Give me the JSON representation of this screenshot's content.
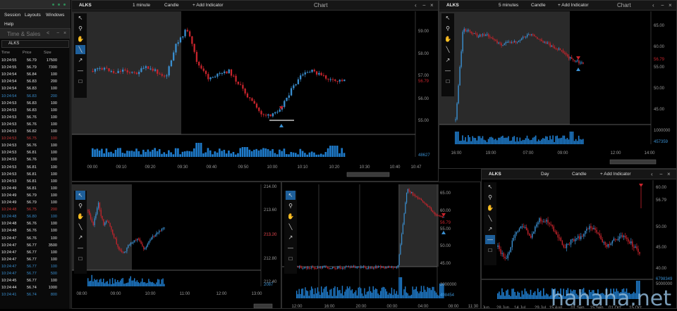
{
  "menu": {
    "items": [
      "Session",
      "Layouts",
      "Windows",
      "Help"
    ]
  },
  "time_sales": {
    "title": "Time & Sales",
    "symbol": "ALKS",
    "columns": [
      "Time",
      "Price",
      "Size"
    ],
    "rows": [
      {
        "time": "10:24:55",
        "price": "56.79",
        "size": "17500",
        "color": "#e6e6e6"
      },
      {
        "time": "10:24:55",
        "price": "56.79",
        "size": "7300",
        "color": "#e6e6e6"
      },
      {
        "time": "10:24:54",
        "price": "56.84",
        "size": "100",
        "color": "#e6e6e6"
      },
      {
        "time": "10:24:54",
        "price": "56.83",
        "size": "200",
        "color": "#e6e6e6"
      },
      {
        "time": "10:24:54",
        "price": "56.83",
        "size": "100",
        "color": "#e6e6e6"
      },
      {
        "time": "10:24:54",
        "price": "56.83",
        "size": "200",
        "color": "#3a8fd0"
      },
      {
        "time": "10:24:53",
        "price": "56.83",
        "size": "100",
        "color": "#e6e6e6"
      },
      {
        "time": "10:24:53",
        "price": "56.83",
        "size": "100",
        "color": "#e6e6e6"
      },
      {
        "time": "10:24:53",
        "price": "56.76",
        "size": "100",
        "color": "#e6e6e6"
      },
      {
        "time": "10:24:53",
        "price": "56.76",
        "size": "100",
        "color": "#e6e6e6"
      },
      {
        "time": "10:24:53",
        "price": "56.82",
        "size": "100",
        "color": "#e6e6e6"
      },
      {
        "time": "10:24:53",
        "price": "56.75",
        "size": "100",
        "color": "#d03a3a"
      },
      {
        "time": "10:24:53",
        "price": "56.76",
        "size": "100",
        "color": "#e6e6e6"
      },
      {
        "time": "10:24:53",
        "price": "56.81",
        "size": "100",
        "color": "#e6e6e6"
      },
      {
        "time": "10:24:53",
        "price": "56.76",
        "size": "100",
        "color": "#e6e6e6"
      },
      {
        "time": "10:24:53",
        "price": "56.81",
        "size": "100",
        "color": "#e6e6e6"
      },
      {
        "time": "10:24:53",
        "price": "56.81",
        "size": "100",
        "color": "#e6e6e6"
      },
      {
        "time": "10:24:53",
        "price": "56.81",
        "size": "100",
        "color": "#e6e6e6"
      },
      {
        "time": "10:24:49",
        "price": "56.81",
        "size": "100",
        "color": "#e6e6e6"
      },
      {
        "time": "10:24:49",
        "price": "56.79",
        "size": "100",
        "color": "#e6e6e6"
      },
      {
        "time": "10:24:49",
        "price": "56.79",
        "size": "100",
        "color": "#e6e6e6"
      },
      {
        "time": "10:24:48",
        "price": "56.75",
        "size": "200",
        "color": "#d03a3a"
      },
      {
        "time": "10:24:48",
        "price": "56.80",
        "size": "100",
        "color": "#3a8fd0"
      },
      {
        "time": "10:24:48",
        "price": "56.76",
        "size": "100",
        "color": "#e6e6e6"
      },
      {
        "time": "10:24:48",
        "price": "56.76",
        "size": "100",
        "color": "#e6e6e6"
      },
      {
        "time": "10:24:47",
        "price": "56.76",
        "size": "100",
        "color": "#e6e6e6"
      },
      {
        "time": "10:24:47",
        "price": "56.77",
        "size": "3500",
        "color": "#e6e6e6"
      },
      {
        "time": "10:24:47",
        "price": "56.77",
        "size": "100",
        "color": "#e6e6e6"
      },
      {
        "time": "10:24:47",
        "price": "56.77",
        "size": "100",
        "color": "#e6e6e6"
      },
      {
        "time": "10:24:47",
        "price": "56.77",
        "size": "100",
        "color": "#3a8fd0"
      },
      {
        "time": "10:24:47",
        "price": "56.77",
        "size": "500",
        "color": "#3a8fd0"
      },
      {
        "time": "10:24:45",
        "price": "56.77",
        "size": "100",
        "color": "#e6e6e6"
      },
      {
        "time": "10:24:44",
        "price": "56.74",
        "size": "1000",
        "color": "#e6e6e6"
      },
      {
        "time": "10:24:41",
        "price": "56.74",
        "size": "800",
        "color": "#3a8fd0"
      }
    ]
  },
  "charts": {
    "main": {
      "symbol": "ALKS",
      "interval": "1 minute",
      "style": "Candle",
      "add": "+ Add Indicator",
      "title": "Chart",
      "yticks": [
        "59.00",
        "58.00",
        "57.00",
        "56.00",
        "55.00"
      ],
      "price_tag": "56.79",
      "vol_tag": "48627",
      "xticks": [
        "09:00",
        "09:10",
        "09:20",
        "09:30",
        "09:40",
        "09:50",
        "10:00",
        "10:10",
        "10:20",
        "10:30",
        "10:40",
        "10:47"
      ]
    },
    "tr": {
      "symbol": "ALKS",
      "interval": "5 minutes",
      "style": "Candle",
      "add": "+ Add Indicator",
      "title": "Chart",
      "yticks": [
        "65.00",
        "60.00",
        "55.00",
        "50.00",
        "45.00"
      ],
      "price_tag": "56.79",
      "vol_top": "1000000",
      "vol_tag": "457359",
      "xticks": [
        "16:00",
        "19:00",
        "07:00",
        "09:00",
        "12:00",
        "14:00"
      ]
    },
    "bl": {
      "yticks": [
        "214.00",
        "213.60",
        "213.20",
        "212.80",
        "212.40"
      ],
      "price_tag": "213.20",
      "vol_tag": "2087",
      "xticks": [
        "08:00",
        "09:00",
        "10:00",
        "11:00",
        "12:00",
        "13:00"
      ]
    },
    "bm": {
      "yticks": [
        "65.00",
        "60.00",
        "55.00",
        "50.00",
        "45.00"
      ],
      "price_tag": "56.79",
      "vol_top": "2000000",
      "vol_tag": "498454",
      "xticks": [
        "12:00",
        "16:00",
        "20:00",
        "00:00",
        "04:00",
        "08:00",
        "11:30"
      ]
    },
    "br": {
      "symbol": "ALKS",
      "interval": "Day",
      "style": "Candle",
      "add": "+ Add Indicator",
      "yticks": [
        "60.00",
        "56.79",
        "50.00",
        "45.00",
        "40.00"
      ],
      "vol_tag": "6798349",
      "vol_top": "5000000",
      "xticks": [
        "Jun",
        "28 Jun",
        "14 Jul",
        "29 Jul",
        "15 Aug",
        "01 Sep",
        "15 Sep",
        "01 Oct",
        "15 Oct"
      ]
    }
  },
  "tools": [
    "arrow-pointer",
    "zoom",
    "pan-hand",
    "line",
    "arrow-line",
    "horizontal-line",
    "rectangle"
  ],
  "colors": {
    "up": "#3a8fd0",
    "down": "#c8242c",
    "selected_tool": "#1e5f9a",
    "volume": "#1f7ccc"
  },
  "watermark": "hahaha.net"
}
